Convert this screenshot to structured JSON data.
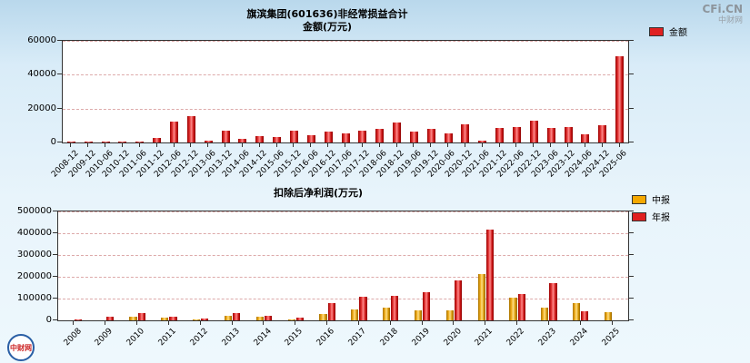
{
  "page": {
    "watermark": "CFi.CN",
    "watermark_sub": "中财网",
    "logo_text": "中财网"
  },
  "chart_data": [
    {
      "type": "bar",
      "title": "旗滨集团(601636)非经常损益合计",
      "subtitle": "金额(万元)",
      "xlabel": "",
      "ylabel": "金额(万元)",
      "ylim": [
        0,
        60000
      ],
      "yticks": [
        0,
        20000,
        40000,
        60000
      ],
      "grid": true,
      "legend_position": "top-right",
      "categories": [
        "2008-12",
        "2009-12",
        "2010-06",
        "2010-12",
        "2011-06",
        "2011-12",
        "2012-06",
        "2012-12",
        "2013-06",
        "2013-12",
        "2014-06",
        "2014-12",
        "2015-06",
        "2015-12",
        "2016-06",
        "2016-12",
        "2017-06",
        "2017-12",
        "2018-06",
        "2018-12",
        "2019-06",
        "2019-12",
        "2020-06",
        "2020-12",
        "2021-06",
        "2021-12",
        "2022-06",
        "2022-12",
        "2023-06",
        "2023-12",
        "2024-06",
        "2024-12",
        "2025-06"
      ],
      "series": [
        {
          "name": "金额",
          "color": "#e02020",
          "color_key": "red",
          "values": [
            300,
            500,
            400,
            800,
            600,
            2700,
            12300,
            15500,
            1000,
            7000,
            2100,
            3700,
            3200,
            7000,
            4300,
            6400,
            5400,
            7000,
            8000,
            11800,
            6400,
            8000,
            5400,
            10700,
            1000,
            8600,
            9100,
            12900,
            8600,
            9100,
            4800,
            10200,
            50900
          ]
        }
      ]
    },
    {
      "type": "bar",
      "title": "扣除后净利润(万元)",
      "xlabel": "",
      "ylabel": "扣除后净利润(万元)",
      "ylim": [
        0,
        500000
      ],
      "yticks": [
        0,
        100000,
        200000,
        300000,
        400000,
        500000
      ],
      "grid": true,
      "legend_position": "top-right",
      "categories": [
        "2008",
        "2009",
        "2010",
        "2011",
        "2012",
        "2013",
        "2014",
        "2015",
        "2016",
        "2017",
        "2018",
        "2019",
        "2020",
        "2021",
        "2022",
        "2023",
        "2024",
        "2025"
      ],
      "series": [
        {
          "name": "中报",
          "color": "#f5a800",
          "color_key": "yellow",
          "values": [
            null,
            null,
            17000,
            12000,
            4000,
            21000,
            17000,
            4000,
            29000,
            50000,
            58000,
            46000,
            46000,
            213000,
            104000,
            58000,
            79000,
            37000
          ]
        },
        {
          "name": "年报",
          "color": "#e02020",
          "color_key": "red",
          "values": [
            4000,
            15000,
            33000,
            17000,
            8000,
            33000,
            21000,
            12000,
            79000,
            108000,
            113000,
            129000,
            183000,
            417000,
            121000,
            171000,
            42000,
            null
          ]
        }
      ]
    }
  ]
}
